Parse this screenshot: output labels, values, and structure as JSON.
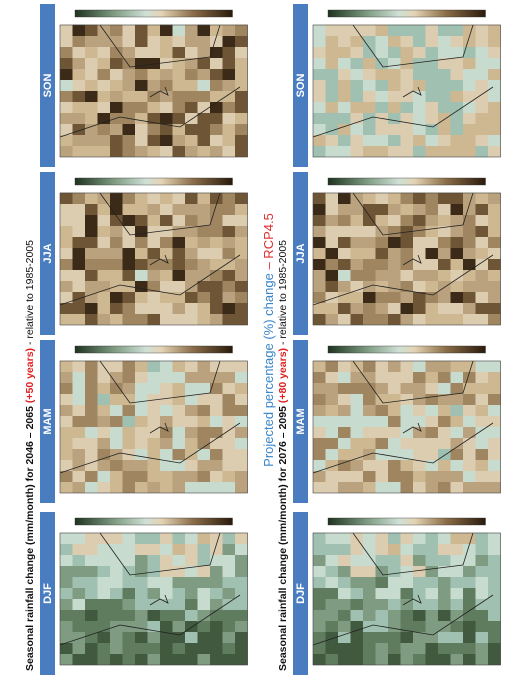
{
  "title": {
    "text": "Projected percentage (%) change",
    "highlight": "– RCP4.5"
  },
  "panels": [
    {
      "heading": {
        "prefix": "Seasonal rainfall change (mm/month) for 2046 – 2065",
        "highlight": "(+50 years)",
        "suffix": "- relative to 1985-2005"
      },
      "seasons": [
        "DJF",
        "MAM",
        "JJA",
        "SON"
      ]
    },
    {
      "heading": {
        "prefix": "Seasonal rainfall change (mm/month) for 2076 – 2095",
        "highlight": "(+80 years)",
        "suffix": "- relative to 1985-2005"
      },
      "seasons": [
        "DJF",
        "MAM",
        "JJA",
        "SON"
      ]
    }
  ]
}
